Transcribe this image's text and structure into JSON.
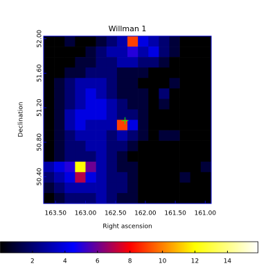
{
  "chart_data": {
    "type": "heatmap",
    "title": "Willman 1",
    "x_label": "Right ascension",
    "y_label": "Declination",
    "xlim": [
      163.7,
      160.9
    ],
    "ylim": [
      50.09,
      52.03
    ],
    "xticks": [
      {
        "value": 163.5,
        "label": "163.50"
      },
      {
        "value": 163.0,
        "label": "163.00"
      },
      {
        "value": 162.5,
        "label": "162.50"
      },
      {
        "value": 162.0,
        "label": "162.00"
      },
      {
        "value": 161.5,
        "label": "161.50"
      },
      {
        "value": 161.0,
        "label": "161.00"
      }
    ],
    "yticks": [
      {
        "value": 50.4,
        "label": "50.40"
      },
      {
        "value": 50.8,
        "label": "50.80"
      },
      {
        "value": 51.2,
        "label": "51.20"
      },
      {
        "value": 51.6,
        "label": "51.60"
      },
      {
        "value": 52.0,
        "label": "52.00"
      }
    ],
    "z": [
      [
        0,
        0,
        1,
        0,
        0,
        1,
        2,
        3,
        9,
        4,
        3,
        2,
        1,
        0,
        0,
        0
      ],
      [
        0,
        0,
        0,
        0,
        1,
        2,
        3,
        3,
        5,
        3,
        4,
        2,
        1,
        0,
        0,
        0
      ],
      [
        0,
        0,
        0,
        1,
        1,
        2,
        2,
        3,
        3,
        2,
        2,
        1,
        0,
        0,
        0,
        0
      ],
      [
        0,
        0,
        1,
        1,
        2,
        2,
        2,
        1,
        1,
        1,
        0,
        0,
        0,
        0,
        0,
        0
      ],
      [
        0,
        1,
        2,
        3,
        3,
        3,
        2,
        1,
        1,
        0,
        0,
        0,
        1,
        0,
        0,
        0
      ],
      [
        0,
        1,
        2,
        3,
        4,
        3,
        2,
        1,
        1,
        1,
        0,
        2,
        0,
        0,
        0,
        0
      ],
      [
        0,
        1,
        2,
        3,
        4,
        4,
        3,
        2,
        1,
        1,
        0,
        1,
        0,
        0,
        0,
        0
      ],
      [
        0,
        1,
        3,
        4,
        4,
        4,
        3,
        2,
        2,
        1,
        0,
        0,
        0,
        0,
        0,
        0
      ],
      [
        0,
        1,
        3,
        4,
        3,
        3,
        3,
        9,
        4,
        1,
        0,
        0,
        0,
        0,
        0,
        0
      ],
      [
        0,
        1,
        2,
        3,
        3,
        3,
        2,
        3,
        2,
        1,
        0,
        1,
        1,
        0,
        0,
        0
      ],
      [
        0,
        1,
        2,
        2,
        3,
        3,
        2,
        2,
        1,
        0,
        0,
        0,
        0,
        0,
        0,
        0
      ],
      [
        0,
        1,
        2,
        2,
        2,
        3,
        2,
        1,
        0,
        0,
        0,
        0,
        0,
        0,
        0,
        0
      ],
      [
        3,
        4,
        5,
        12,
        6,
        3,
        2,
        1,
        1,
        0,
        0,
        0,
        0,
        0,
        0,
        1
      ],
      [
        2,
        3,
        4,
        7,
        4,
        3,
        2,
        2,
        1,
        0,
        0,
        0,
        0,
        1,
        0,
        0
      ],
      [
        1,
        2,
        3,
        3,
        3,
        3,
        2,
        2,
        1,
        0,
        0,
        0,
        0,
        0,
        0,
        0
      ],
      [
        0,
        1,
        2,
        2,
        2,
        3,
        2,
        1,
        1,
        0,
        0,
        0,
        0,
        0,
        0,
        0
      ]
    ],
    "clim": [
      0,
      15.9
    ],
    "colormap": [
      {
        "value": 0,
        "color": "#000000"
      },
      {
        "value": 4.5,
        "color": "#0000ff"
      },
      {
        "value": 8,
        "color": "#ff0000"
      },
      {
        "value": 12,
        "color": "#ffff00"
      },
      {
        "value": 15.9,
        "color": "#ffffff"
      }
    ],
    "colorbar_ticks": [
      2,
      4,
      6,
      8,
      10,
      12,
      14
    ],
    "marker": {
      "x": 162.34,
      "y": 51.05,
      "color": "#00ff00"
    },
    "frame_color": "#0000cc"
  }
}
